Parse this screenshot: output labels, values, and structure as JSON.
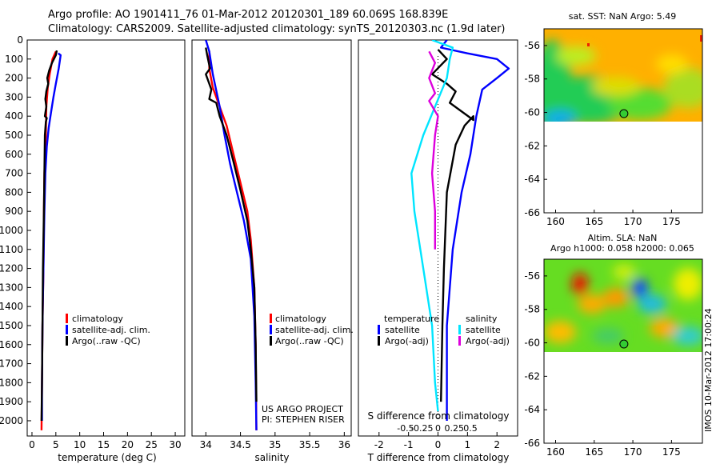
{
  "header": {
    "line1": "Argo profile: AO 1901411_76 01-Mar-2012 20120301_189 60.069S 168.839E",
    "line2": "Climatology: CARS2009. Satellite-adjusted climatology: synTS_20120303.nc (1.9d later)"
  },
  "colors": {
    "climatology": "#ff0000",
    "satellite": "#0000ff",
    "argo": "#000000",
    "salinity_diff": "#00e5ff",
    "argo_sal_diff": "#dd00dd",
    "dot": "#33cc33"
  },
  "chart_data": [
    {
      "type": "line",
      "xlabel": "temperature (deg C)",
      "ylabel": "",
      "xlim": [
        -1,
        32
      ],
      "ylim": [
        2080,
        0
      ],
      "xticks": [
        0,
        5,
        10,
        15,
        20,
        25,
        30
      ],
      "yticks": [
        0,
        100,
        200,
        300,
        400,
        500,
        600,
        700,
        800,
        900,
        1000,
        1100,
        1200,
        1300,
        1400,
        1500,
        1600,
        1700,
        1800,
        1900,
        2000
      ],
      "legend": [
        "climatology",
        "satellite-adj. clim.",
        "Argo(..raw -QC)"
      ],
      "series": [
        {
          "name": "climatology",
          "color": "red",
          "points": [
            [
              5,
              60
            ],
            [
              4.3,
              100
            ],
            [
              3.7,
              180
            ],
            [
              3.3,
              250
            ],
            [
              3.0,
              350
            ],
            [
              2.9,
              500
            ],
            [
              2.6,
              700
            ],
            [
              2.5,
              900
            ],
            [
              2.4,
              1200
            ],
            [
              2.2,
              1500
            ],
            [
              2.1,
              1800
            ],
            [
              2.0,
              2050
            ]
          ]
        },
        {
          "name": "satellite-adj. clim.",
          "color": "blue",
          "points": [
            [
              5.5,
              70
            ],
            [
              6,
              80
            ],
            [
              5.6,
              150
            ],
            [
              5.0,
              230
            ],
            [
              4.5,
              300
            ],
            [
              4.0,
              380
            ],
            [
              3.5,
              460
            ],
            [
              3.1,
              560
            ],
            [
              2.8,
              700
            ],
            [
              2.6,
              900
            ],
            [
              2.4,
              1200
            ],
            [
              2.2,
              1500
            ],
            [
              2.1,
              1800
            ],
            [
              2.1,
              2000
            ]
          ]
        },
        {
          "name": "Argo(..raw -QC)",
          "color": "black",
          "points": [
            [
              5.2,
              55
            ],
            [
              5.0,
              80
            ],
            [
              4.2,
              120
            ],
            [
              3.6,
              160
            ],
            [
              3.2,
              200
            ],
            [
              3.4,
              230
            ],
            [
              3.0,
              270
            ],
            [
              2.8,
              310
            ],
            [
              3.0,
              350
            ],
            [
              2.7,
              400
            ],
            [
              3.1,
              410
            ],
            [
              2.9,
              430
            ],
            [
              2.7,
              500
            ],
            [
              2.6,
              700
            ],
            [
              2.5,
              900
            ],
            [
              2.3,
              1200
            ],
            [
              2.2,
              1500
            ],
            [
              2.1,
              1800
            ],
            [
              2.0,
              2000
            ]
          ]
        }
      ]
    },
    {
      "type": "line",
      "xlabel": "salinity",
      "xlim": [
        33.8,
        36.1
      ],
      "ylim": [
        2080,
        0
      ],
      "xticks": [
        34,
        34.5,
        35,
        35.5,
        36
      ],
      "legend": [
        "climatology",
        "satellite-adj. clim.",
        "Argo(..raw -QC)"
      ],
      "annotations": [
        "US ARGO PROJECT",
        "PI: STEPHEN RISER"
      ],
      "series": [
        {
          "name": "climatology",
          "color": "red",
          "points": [
            [
              34.05,
              60
            ],
            [
              34.05,
              150
            ],
            [
              34.1,
              250
            ],
            [
              34.2,
              350
            ],
            [
              34.3,
              450
            ],
            [
              34.4,
              600
            ],
            [
              34.5,
              750
            ],
            [
              34.6,
              900
            ],
            [
              34.65,
              1050
            ],
            [
              34.7,
              1300
            ],
            [
              34.72,
              1600
            ],
            [
              34.73,
              2050
            ]
          ]
        },
        {
          "name": "satellite-adj. clim.",
          "color": "blue",
          "points": [
            [
              34.0,
              0
            ],
            [
              34.05,
              60
            ],
            [
              34.1,
              180
            ],
            [
              34.2,
              350
            ],
            [
              34.27,
              500
            ],
            [
              34.35,
              650
            ],
            [
              34.45,
              800
            ],
            [
              34.55,
              950
            ],
            [
              34.65,
              1150
            ],
            [
              34.7,
              1450
            ],
            [
              34.72,
              1800
            ],
            [
              34.73,
              2050
            ]
          ]
        },
        {
          "name": "Argo(..raw -QC)",
          "color": "black",
          "points": [
            [
              34.0,
              40
            ],
            [
              34.02,
              80
            ],
            [
              34.06,
              150
            ],
            [
              34.0,
              180
            ],
            [
              34.08,
              260
            ],
            [
              34.05,
              310
            ],
            [
              34.15,
              330
            ],
            [
              34.2,
              400
            ],
            [
              34.3,
              500
            ],
            [
              34.4,
              640
            ],
            [
              34.5,
              790
            ],
            [
              34.6,
              950
            ],
            [
              34.65,
              1100
            ],
            [
              34.7,
              1300
            ],
            [
              34.72,
              1600
            ],
            [
              34.73,
              1900
            ]
          ]
        }
      ]
    },
    {
      "type": "line",
      "xlabel": "T difference from climatology",
      "top_axis_label": "S difference from climatology",
      "xlim": [
        -2.7,
        2.7
      ],
      "ylim": [
        2080,
        0
      ],
      "xticks": [
        -2,
        -1,
        0,
        1,
        2
      ],
      "top_xticks": [
        "-0.5",
        "-0.25",
        "0",
        "0.25",
        "0.5"
      ],
      "legend": [
        "temperature",
        "satellite",
        "Argo(-adj)",
        "salinity",
        "satellite",
        "Argo(-adj)"
      ],
      "series": [
        {
          "name": "temperature satellite",
          "color": "blue",
          "points": [
            [
              0.3,
              0
            ],
            [
              0.1,
              40
            ],
            [
              1.0,
              70
            ],
            [
              2.0,
              100
            ],
            [
              2.4,
              150
            ],
            [
              2.0,
              200
            ],
            [
              1.5,
              260
            ],
            [
              1.3,
              400
            ],
            [
              1.1,
              600
            ],
            [
              0.8,
              800
            ],
            [
              0.5,
              1100
            ],
            [
              0.3,
              1500
            ],
            [
              0.3,
              2000
            ]
          ]
        },
        {
          "name": "temperature Argo(-adj)",
          "color": "black",
          "points": [
            [
              0.0,
              50
            ],
            [
              0.3,
              100
            ],
            [
              -0.2,
              180
            ],
            [
              0.3,
              230
            ],
            [
              0.6,
              270
            ],
            [
              0.4,
              330
            ],
            [
              1.2,
              420
            ],
            [
              1.2,
              400
            ],
            [
              0.9,
              450
            ],
            [
              0.6,
              550
            ],
            [
              0.3,
              800
            ],
            [
              0.2,
              1200
            ],
            [
              0.15,
              1500
            ],
            [
              0.1,
              1900
            ]
          ]
        },
        {
          "name": "salinity satellite",
          "color": "cyan",
          "points": [
            [
              -0.2,
              0
            ],
            [
              0.5,
              40
            ],
            [
              0.4,
              100
            ],
            [
              0.3,
              200
            ],
            [
              -0.1,
              350
            ],
            [
              -0.5,
              500
            ],
            [
              -0.9,
              700
            ],
            [
              -0.8,
              900
            ],
            [
              -0.5,
              1200
            ],
            [
              -0.2,
              1500
            ],
            [
              -0.1,
              1800
            ],
            [
              0.0,
              1950
            ]
          ]
        },
        {
          "name": "salinity Argo(-adj)",
          "color": "magenta",
          "points": [
            [
              -0.3,
              60
            ],
            [
              -0.1,
              120
            ],
            [
              -0.3,
              200
            ],
            [
              -0.1,
              280
            ],
            [
              -0.3,
              320
            ],
            [
              0.0,
              400
            ],
            [
              -0.1,
              500
            ],
            [
              -0.2,
              700
            ],
            [
              -0.1,
              900
            ],
            [
              -0.1,
              1100
            ]
          ]
        }
      ]
    },
    {
      "type": "heatmap",
      "title": "sat. SST: NaN Argo: 5.49",
      "xlim": [
        158.5,
        179
      ],
      "ylim": [
        -66,
        -55
      ],
      "xticks": [
        160,
        165,
        170,
        175
      ],
      "yticks": [
        -56,
        -58,
        -60,
        -62,
        -64,
        -66
      ],
      "marker": [
        168.84,
        -60.07
      ]
    },
    {
      "type": "heatmap",
      "title": "Altim. SLA: NaN",
      "subtitle": "Argo h1000: 0.058 h2000: 0.065",
      "xlim": [
        158.5,
        179
      ],
      "ylim": [
        -66,
        -55
      ],
      "xticks": [
        160,
        165,
        170,
        175
      ],
      "yticks": [
        -56,
        -58,
        -60,
        -62,
        -64,
        -66
      ],
      "marker": [
        168.84,
        -60.07
      ]
    }
  ],
  "footer": {
    "stamp": "IMOS 10-Mar-2012 17:00:24"
  }
}
